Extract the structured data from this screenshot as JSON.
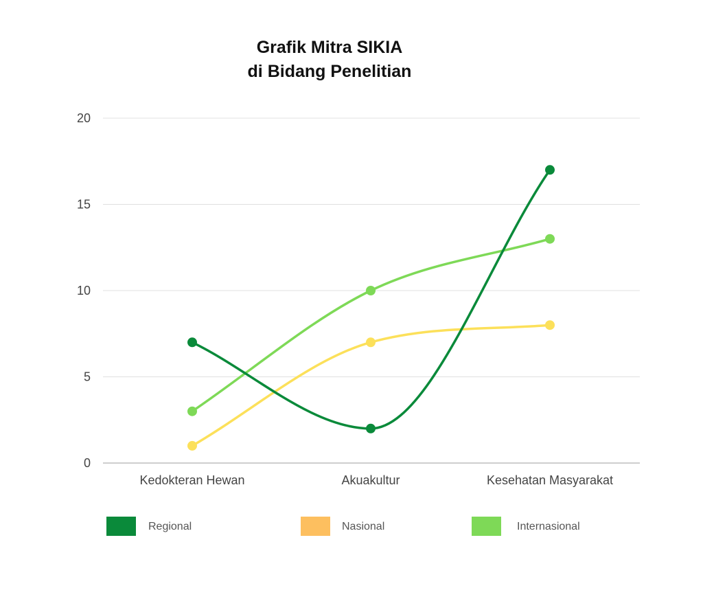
{
  "chart_data": {
    "type": "line",
    "title_lines": [
      "Grafik Mitra SIKIA",
      "di Bidang Penelitian"
    ],
    "categories": [
      "Kedokteran Hewan",
      "Akuakultur",
      "Kesehatan Masyarakat"
    ],
    "series": [
      {
        "name": "Regional",
        "values": [
          7,
          2,
          17
        ],
        "color": "#0a8a3a"
      },
      {
        "name": "Nasional",
        "values": [
          1,
          7,
          8
        ],
        "color": "#fce05a",
        "legend_color": "#fdbf5f"
      },
      {
        "name": "Internasional",
        "values": [
          3,
          10,
          13
        ],
        "color": "#7ed957"
      }
    ],
    "ylim": [
      0,
      20
    ],
    "yticks": [
      0,
      5,
      10,
      15,
      20
    ],
    "grid": true,
    "legend_position": "bottom",
    "smooth": true
  }
}
